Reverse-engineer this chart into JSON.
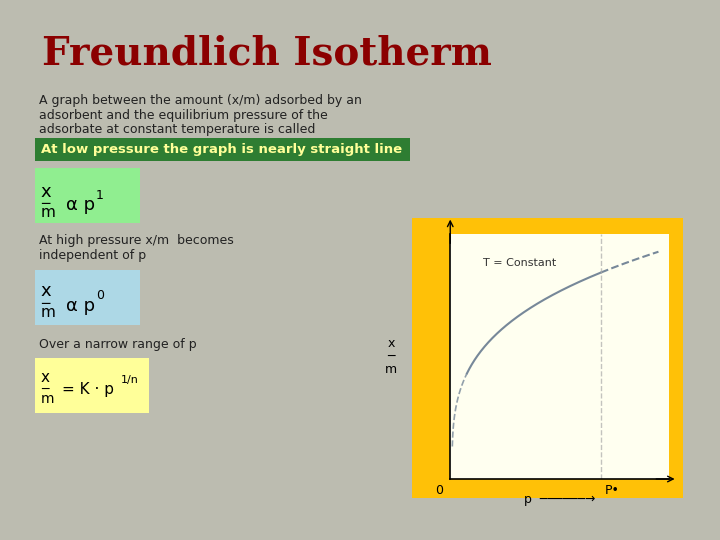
{
  "title": "Freundlich Isotherm",
  "title_color": "#8B0000",
  "bg_color": "#BCBCB0",
  "slide_bg": "#FFFFFF",
  "description_line1": "A graph between the amount (x/m) adsorbed by an",
  "description_line2": "adsorbent and the equilibrium pressure of the",
  "description_line3": "adsorbate at constant temperature is called",
  "green_banner": "At low pressure the graph is nearly straight line",
  "green_banner_bg": "#2E7D32",
  "green_banner_fg": "#FFFF99",
  "formula1_bg": "#90EE90",
  "mid_text1": "At high pressure x/m  becomes",
  "mid_text2": "independent of p",
  "formula2_bg": "#ADD8E6",
  "bottom_text": "Over a narrow range of p",
  "formula3_bg": "#FFFF99",
  "graph_outer_bg": "#FFC107",
  "graph_inner_bg": "#FFFFF0",
  "graph_curve_color": "#778899",
  "graph_annotation": "T = Constant",
  "text_color": "#222222"
}
